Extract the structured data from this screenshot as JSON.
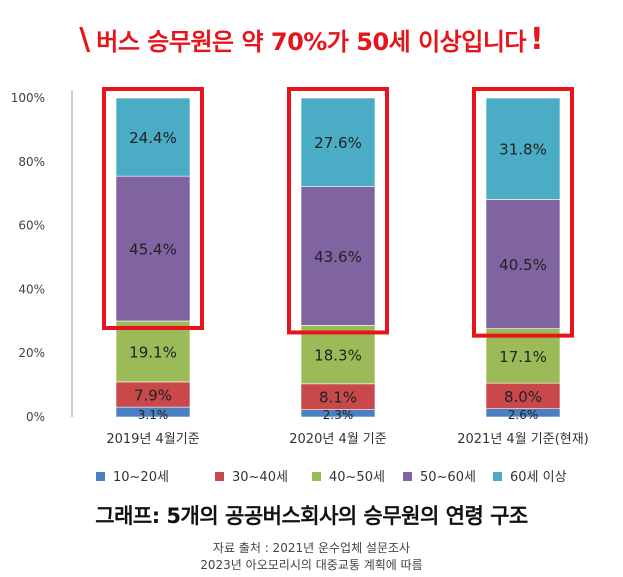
{
  "headline": {
    "mark": "\\",
    "text": "버스 승무원은 약 70%가 50세 이상입니다",
    "exclamation": "!"
  },
  "chart_data": {
    "type": "bar",
    "stacked": true,
    "percent_scale": true,
    "categories": [
      "2019년 4월기준",
      "2020년 4월 기준",
      "2021년 4월 기준(현재)"
    ],
    "yticks": [
      "0%",
      "20%",
      "40%",
      "60%",
      "80%",
      "100%"
    ],
    "ylim": [
      0,
      100
    ],
    "grid": false,
    "legend_position": "bottom",
    "series": [
      {
        "name": "10~20세",
        "color": "#4a7fc1",
        "values": [
          3.1,
          2.3,
          2.6
        ],
        "labels": [
          "3.1%",
          "2.3%",
          "2.6%"
        ]
      },
      {
        "name": "30~40세",
        "color": "#c9484a",
        "values": [
          7.9,
          8.1,
          8.0
        ],
        "labels": [
          "7.9%",
          "8.1%",
          "8.0%"
        ]
      },
      {
        "name": "40~50세",
        "color": "#9bbb59",
        "values": [
          19.1,
          18.3,
          17.1
        ],
        "labels": [
          "19.1%",
          "18.3%",
          "17.1%"
        ]
      },
      {
        "name": "50~60세",
        "color": "#8064a2",
        "values": [
          45.4,
          43.6,
          40.5
        ],
        "labels": [
          "45.4%",
          "43.6%",
          "40.5%"
        ]
      },
      {
        "name": "60세 이상",
        "color": "#4bacc6",
        "values": [
          24.4,
          27.6,
          31.8
        ],
        "labels": [
          "24.4%",
          "27.6%",
          "31.8%"
        ]
      }
    ],
    "highlight": {
      "series": [
        "50~60세",
        "60세 이상"
      ],
      "color": "#e8141b"
    }
  },
  "caption": "그래프: 5개의 공공버스회사의 승무원의 연령 구조",
  "source": {
    "line1": "자료 출처 : 2021년 운수업체 설문조사",
    "line2": "2023년 아오모리시의 대중교통 계획에 따름"
  }
}
